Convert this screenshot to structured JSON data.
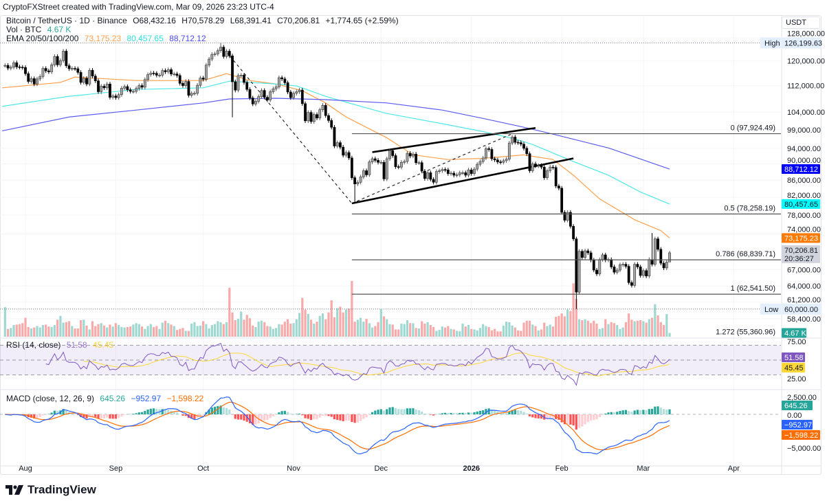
{
  "credit": "CryptoFXStreet created with TradingView.com, Mar 09, 2026 23:23 UTC-4",
  "legend": {
    "symbol": "Bitcoin / TetherUS · 1D · Binance",
    "ohlc": [
      {
        "k": "O",
        "v": "68,432.16"
      },
      {
        "k": "H",
        "v": "70,578.29"
      },
      {
        "k": "L",
        "v": "68,391.41"
      },
      {
        "k": "C",
        "v": "70,206.81"
      }
    ],
    "change": "+1,774.65 (+2.59%)",
    "vol_label": "Vol · BTC",
    "vol_value": "4.67 K",
    "ema_label": "EMA 20/50/100/200",
    "ema_values": [
      "73,175.23",
      "80,457.65",
      "88,712.12"
    ],
    "rsi_label": "RSI (14, close)",
    "rsi_values": [
      "51.58",
      "45.45"
    ],
    "macd_label": "MACD (close, 12, 26, 9)",
    "macd_values": [
      "645.26",
      "−952.97",
      "−1,598.22"
    ]
  },
  "axis_unit": "USDT",
  "logo_text": "TradingView",
  "colors": {
    "up_candle": "#a3a3a3",
    "down_candle": "#000000",
    "vol_up": "#9fd8d1",
    "vol_down": "#f8a9a9",
    "ema_fast": "#ff9f4a",
    "ema_mid": "#4ee8e8",
    "ema_slow": "#5b5bf0",
    "rsi": "#7e57c2",
    "rsi_ma": "#fdd835",
    "macd": "#2962ff",
    "signal": "#ff6d00",
    "hist_up": "#26a69a",
    "hist_down": "#ff5252"
  },
  "chart_data": {
    "type": "candlestick",
    "scale": "log",
    "candles": {
      "start_date": "2025-07-25",
      "closes": [
        118500,
        117600,
        117900,
        119400,
        118000,
        117900,
        117800,
        115800,
        113300,
        114200,
        112500,
        114100,
        114900,
        117500,
        116700,
        116400,
        118700,
        121500,
        118700,
        120100,
        123300,
        118400,
        117400,
        117500,
        117400,
        116200,
        113000,
        114300,
        112500,
        116900,
        115000,
        113500,
        110100,
        111800,
        111300,
        112500,
        108400,
        108800,
        108300,
        109200,
        111200,
        111700,
        110700,
        110200,
        110200,
        111100,
        112000,
        111500,
        113900,
        115500,
        116000,
        115900,
        115300,
        115300,
        116800,
        116400,
        117100,
        115700,
        115700,
        115200,
        112700,
        112000,
        113300,
        109000,
        109600,
        109600,
        112100,
        114400,
        114000,
        118600,
        120600,
        122200,
        122400,
        123500,
        124700,
        121500,
        123300,
        121700,
        113200,
        110600,
        115200,
        115300,
        113000,
        110800,
        108200,
        106400,
        107200,
        108600,
        110500,
        108400,
        107600,
        110100,
        111000,
        111600,
        114500,
        114100,
        112900,
        110000,
        108300,
        109600,
        110100,
        110600,
        106500,
        101500,
        103900,
        101300,
        103300,
        102300,
        104700,
        106000,
        103000,
        101600,
        99700,
        94600,
        95500,
        94300,
        92200,
        92900,
        91500,
        86600,
        85100,
        85500,
        86800,
        88300,
        87300,
        90500,
        91300,
        90900,
        90400,
        90400,
        86300,
        91300,
        93400,
        92100,
        89300,
        89200,
        90400,
        90600,
        92700,
        92000,
        92500,
        90300,
        90300,
        88200,
        86400,
        87800,
        86200,
        85500,
        88100,
        88300,
        88600,
        88500,
        87600,
        87700,
        87200,
        87300,
        87800,
        87800,
        87200,
        88500,
        87600,
        88700,
        89900,
        90600,
        91500,
        93900,
        93700,
        91300,
        91000,
        90500,
        90400,
        90800,
        91200,
        95400,
        97000,
        95600,
        95500,
        95100,
        94000,
        92600,
        88300,
        90000,
        89500,
        89600,
        89200,
        86600,
        88300,
        89200,
        89100,
        84600,
        84100,
        78600,
        76900,
        78600,
        75600,
        73000,
        62900,
        70500,
        69300,
        70600,
        70200,
        68800,
        66900,
        66200,
        68900,
        69800,
        68800,
        68900,
        67500,
        66500,
        66900,
        67900,
        68000,
        67600,
        64600,
        64100,
        68000,
        67500,
        65900,
        66800,
        65800,
        68900,
        68000,
        73000,
        70900,
        68200,
        67300,
        68432.16,
        70206.81
      ],
      "last": {
        "open": 68432.16,
        "high": 70578.29,
        "low": 68391.41,
        "close": 70206.81
      },
      "wick_highs": {
        "2025-10-07": 126199.63,
        "2026-03-04": 74200
      },
      "wick_lows": {
        "2025-10-11": 102500,
        "2025-11-22": 80600,
        "2026-02-06": 60000
      }
    },
    "volume_k": [
      36.6,
      9.6,
      10.8,
      14.4,
      15.0,
      15.6,
      16.8,
      23.4,
      12.0,
      10.2,
      11.4,
      13.2,
      11.4,
      14.4,
      15.0,
      12.6,
      12.0,
      14.4,
      21.0,
      25.8,
      17.4,
      18.0,
      19.2,
      13.2,
      10.2,
      10.2,
      20.4,
      21.0,
      13.8,
      9.0,
      19.2,
      13.2,
      15.6,
      16.8,
      13.8,
      11.4,
      15.0,
      12.6,
      16.8,
      14.4,
      12.0,
      11.4,
      12.0,
      12.6,
      15.0,
      16.8,
      15.6,
      12.6,
      9.6,
      13.2,
      15.6,
      12.0,
      13.2,
      9.6,
      17.4,
      19.8,
      16.8,
      15.0,
      13.2,
      8.4,
      9.6,
      10.8,
      7.2,
      7.2,
      16.2,
      18.0,
      13.2,
      13.8,
      19.2,
      15.6,
      10.2,
      14.4,
      15.6,
      19.2,
      18.0,
      15.6,
      18.0,
      60.6,
      30.0,
      20.4,
      22.2,
      31.2,
      21.0,
      27.0,
      22.8,
      13.8,
      12.0,
      18.6,
      19.8,
      18.0,
      13.2,
      12.6,
      9.6,
      10.8,
      15.6,
      15.0,
      18.6,
      21.6,
      16.2,
      16.8,
      21.6,
      29.4,
      48.0,
      33.6,
      28.2,
      21.0,
      16.2,
      18.6,
      25.8,
      28.8,
      21.6,
      30.0,
      45.0,
      24.0,
      35.4,
      37.2,
      30.0,
      33.6,
      34.8,
      69.0,
      18.6,
      21.0,
      23.4,
      18.6,
      22.2,
      16.8,
      11.4,
      13.2,
      18.0,
      34.2,
      25.2,
      21.6,
      15.6,
      15.0,
      9.0,
      9.0,
      16.2,
      15.6,
      20.4,
      16.8,
      16.8,
      10.8,
      10.2,
      19.2,
      16.2,
      18.0,
      14.4,
      12.0,
      7.2,
      8.4,
      12.6,
      11.4,
      13.2,
      9.6,
      9.0,
      7.2,
      6.6,
      16.2,
      12.6,
      14.4,
      9.6,
      9.0,
      7.8,
      10.8,
      15.6,
      13.2,
      12.0,
      7.8,
      9.6,
      6.6,
      6.6,
      13.8,
      18.6,
      18.0,
      13.8,
      11.4,
      7.8,
      7.2,
      17.4,
      19.8,
      19.8,
      15.0,
      13.2,
      7.8,
      9.0,
      17.4,
      13.2,
      15.0,
      12.6,
      24.6,
      25.8,
      28.8,
      25.2,
      33.6,
      31.8,
      66.0,
      46.8,
      21.6,
      20.4,
      21.6,
      19.8,
      16.8,
      19.8,
      16.2,
      9.6,
      10.8,
      21.6,
      15.6,
      18.0,
      16.8,
      14.4,
      9.6,
      11.4,
      18.0,
      28.8,
      21.0,
      19.2,
      19.8,
      20.4,
      19.2,
      17.4,
      21.6,
      23.4,
      40.2,
      26.4,
      18.0,
      14.4,
      28.0,
      4.67
    ],
    "emas": [
      {
        "value": "73,175.23",
        "color": "#ff9f4a",
        "points": [
          [
            "2025-07-24",
            111300
          ],
          [
            "2025-08-13",
            113000
          ],
          [
            "2025-08-18",
            114700
          ],
          [
            "2025-09-08",
            113600
          ],
          [
            "2025-10-01",
            113600
          ],
          [
            "2025-10-09",
            115800
          ],
          [
            "2025-10-17",
            113600
          ],
          [
            "2025-10-26",
            112500
          ],
          [
            "2025-11-04",
            110400
          ],
          [
            "2025-11-12",
            106700
          ],
          [
            "2025-11-19",
            102600
          ],
          [
            "2025-12-03",
            96800
          ],
          [
            "2025-12-12",
            92300
          ],
          [
            "2025-12-24",
            91100
          ],
          [
            "2026-01-05",
            91400
          ],
          [
            "2026-01-19",
            92300
          ],
          [
            "2026-01-29",
            91100
          ],
          [
            "2026-02-05",
            87200
          ],
          [
            "2026-02-14",
            81600
          ],
          [
            "2026-02-26",
            77000
          ],
          [
            "2026-03-07",
            74700
          ],
          [
            "2026-03-10",
            73175.23
          ]
        ]
      },
      {
        "value": "80,457.65",
        "color": "#4ee8e8",
        "points": [
          [
            "2025-07-24",
            105700
          ],
          [
            "2025-08-16",
            108700
          ],
          [
            "2025-09-08",
            110800
          ],
          [
            "2025-10-01",
            111300
          ],
          [
            "2025-10-10",
            113400
          ],
          [
            "2025-10-26",
            112500
          ],
          [
            "2025-11-02",
            111900
          ],
          [
            "2025-11-12",
            108700
          ],
          [
            "2025-11-24",
            105700
          ],
          [
            "2025-12-03",
            103600
          ],
          [
            "2025-12-22",
            100700
          ],
          [
            "2026-01-05",
            98500
          ],
          [
            "2026-01-16",
            96500
          ],
          [
            "2026-01-22",
            95000
          ],
          [
            "2026-02-05",
            90600
          ],
          [
            "2026-02-17",
            87200
          ],
          [
            "2026-02-28",
            83200
          ],
          [
            "2026-03-10",
            80457.65
          ]
        ]
      },
      {
        "value": "88,712.12",
        "color": "#5b5bf0",
        "points": [
          [
            "2025-07-24",
            98700
          ],
          [
            "2025-08-16",
            102600
          ],
          [
            "2025-09-08",
            104600
          ],
          [
            "2025-10-01",
            106700
          ],
          [
            "2025-10-10",
            107900
          ],
          [
            "2025-10-26",
            108100
          ],
          [
            "2025-11-12",
            107700
          ],
          [
            "2025-12-03",
            106700
          ],
          [
            "2025-12-22",
            104600
          ],
          [
            "2026-01-05",
            102200
          ],
          [
            "2026-01-19",
            99700
          ],
          [
            "2026-01-29",
            97800
          ],
          [
            "2026-02-17",
            94100
          ],
          [
            "2026-03-10",
            88712.12
          ]
        ]
      }
    ],
    "fib_levels": [
      {
        "label": "0 (97,924.49)",
        "price": 97924.49
      },
      {
        "label": "0.5 (78,258.19)",
        "price": 78258.19
      },
      {
        "label": "0.786 (68,839.71)",
        "price": 68839.71
      },
      {
        "label": "1 (62,541.50)",
        "price": 62541.5
      },
      {
        "label": "1.272 (55,360.96)",
        "price": 55360.96
      }
    ],
    "fib_start": "2025-11-21",
    "trendlines": [
      {
        "style": "solid",
        "from": [
          "2025-11-28",
          93000
        ],
        "to": [
          "2026-01-23",
          99500
        ]
      },
      {
        "style": "solid",
        "from": [
          "2025-11-21",
          80600
        ],
        "to": [
          "2026-02-05",
          91400
        ]
      },
      {
        "style": "dashed",
        "from": [
          "2025-10-09",
          123000
        ],
        "to": [
          "2025-11-21",
          80600
        ]
      },
      {
        "style": "dashed",
        "from": [
          "2025-11-21",
          80600
        ],
        "to": [
          "2026-01-15",
          97900
        ]
      }
    ],
    "high_marker": {
      "label": "High",
      "value": "126,199.63"
    },
    "low_marker": {
      "label": "Low",
      "value": "60,000.00"
    },
    "price_axis": {
      "ticks": [
        "128,000.00",
        "120,000.00",
        "112,000.00",
        "104,000.00",
        "99,000.00",
        "94,000.00",
        "90,000.00",
        "86,000.00",
        "82,000.00",
        "78,000.00",
        "74,000.00",
        "67,000.00",
        "64,000.00",
        "61,200.00",
        "58,400.00"
      ],
      "tags": [
        {
          "value": "88,712.12",
          "bg": "#0000ff",
          "fg": "#ffffff"
        },
        {
          "value": "80,457.65",
          "bg": "#00ffff",
          "fg": "#131722"
        },
        {
          "value": "73,175.23",
          "bg": "#ff7a00",
          "fg": "#ffffff"
        },
        {
          "value": "70,206.81",
          "sub": "20:36:27",
          "bg": "#d1d4dc",
          "fg": "#131722"
        }
      ],
      "volume_tag": {
        "value": "4.67 K",
        "bg": "#26a69a",
        "fg": "#ffffff"
      }
    },
    "rsi_axis": {
      "ticks": [
        "75.00",
        "25.00"
      ],
      "bands": [
        70,
        50,
        30
      ],
      "tags": [
        {
          "value": "51.58",
          "bg": "#7e57c2",
          "fg": "#ffffff"
        },
        {
          "value": "45.45",
          "bg": "#fdd835",
          "fg": "#131722"
        }
      ]
    },
    "macd_axis": {
      "ticks": [
        "2,500.00",
        "0.00",
        "−5,000.00"
      ],
      "tags": [
        {
          "value": "645.26",
          "bg": "#26a69a",
          "fg": "#ffffff"
        },
        {
          "value": "−952.97",
          "bg": "#2962ff",
          "fg": "#ffffff"
        },
        {
          "value": "−1,598.22",
          "bg": "#ff6d00",
          "fg": "#ffffff"
        }
      ]
    },
    "time_axis": [
      {
        "label": "Aug",
        "date": "2025-08-01"
      },
      {
        "label": "Sep",
        "date": "2025-09-01"
      },
      {
        "label": "Oct",
        "date": "2025-10-01"
      },
      {
        "label": "Nov",
        "date": "2025-11-01"
      },
      {
        "label": "Dec",
        "date": "2025-12-01"
      },
      {
        "label": "2026",
        "date": "2026-01-01",
        "bold": true
      },
      {
        "label": "Feb",
        "date": "2026-02-01"
      },
      {
        "label": "Mar",
        "date": "2026-03-01"
      },
      {
        "label": "Apr",
        "date": "2026-04-01"
      }
    ]
  }
}
